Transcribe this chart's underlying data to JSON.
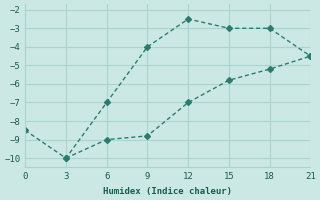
{
  "xlabel": "Humidex (Indice chaleur)",
  "line1_x": [
    0,
    3,
    6,
    9,
    12,
    15,
    18,
    21
  ],
  "line1_y": [
    -8.5,
    -10,
    -7,
    -4,
    -2.5,
    -3,
    -3,
    -4.5
  ],
  "line2_x": [
    3,
    6,
    9,
    12,
    15,
    18,
    21
  ],
  "line2_y": [
    -10,
    -9,
    -8.8,
    -7.0,
    -5.8,
    -5.2,
    -4.5
  ],
  "color": "#2a7d6e",
  "bg_color": "#cce8e4",
  "grid_color": "#aad4ce",
  "xlim": [
    0,
    21
  ],
  "ylim": [
    -10.5,
    -1.7
  ],
  "xticks": [
    0,
    3,
    6,
    9,
    12,
    15,
    18,
    21
  ],
  "yticks": [
    -10,
    -9,
    -8,
    -7,
    -6,
    -5,
    -4,
    -3,
    -2
  ],
  "marker": "D",
  "markersize": 3,
  "linewidth": 1.0
}
